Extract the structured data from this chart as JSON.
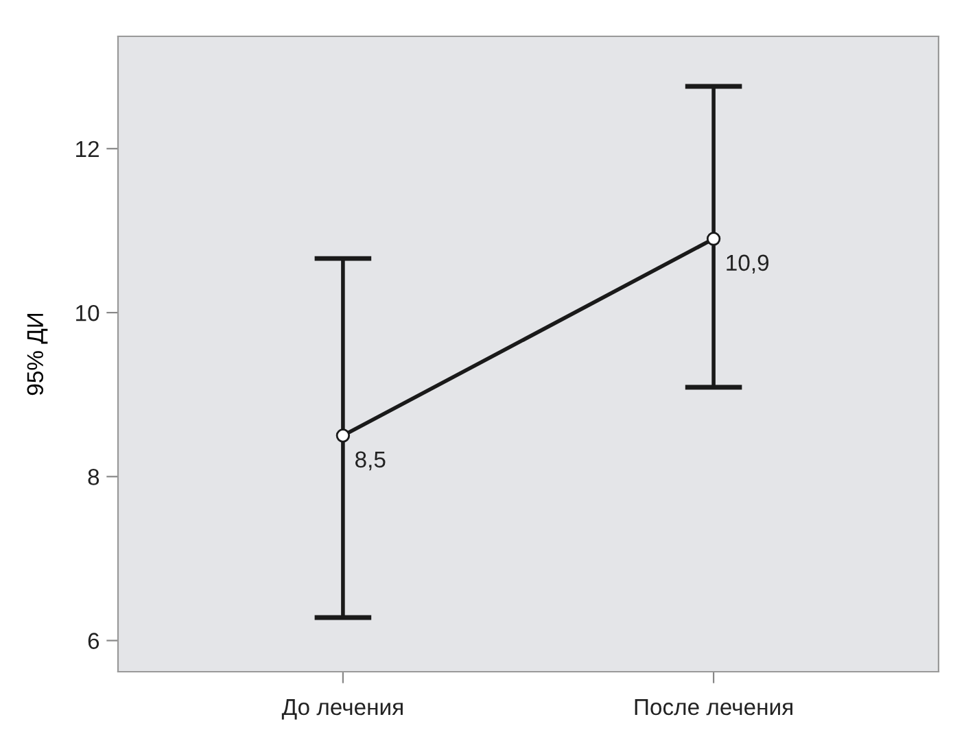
{
  "chart_data": {
    "type": "line",
    "ylabel": "95% ДИ",
    "categories": [
      "До лечения",
      "После лечения"
    ],
    "series": [
      {
        "color": "#1a1a1a",
        "values": [
          8.5,
          10.9
        ],
        "errors": [
          [
            6.28,
            10.66
          ],
          [
            9.09,
            12.76
          ]
        ],
        "value_labels": [
          "8,5",
          "10,9"
        ]
      }
    ],
    "ylim": [
      5.62,
      13.37
    ],
    "yticks": [
      6,
      8,
      10,
      12
    ],
    "grid": false,
    "marker": "circle",
    "line_style": "solid"
  }
}
